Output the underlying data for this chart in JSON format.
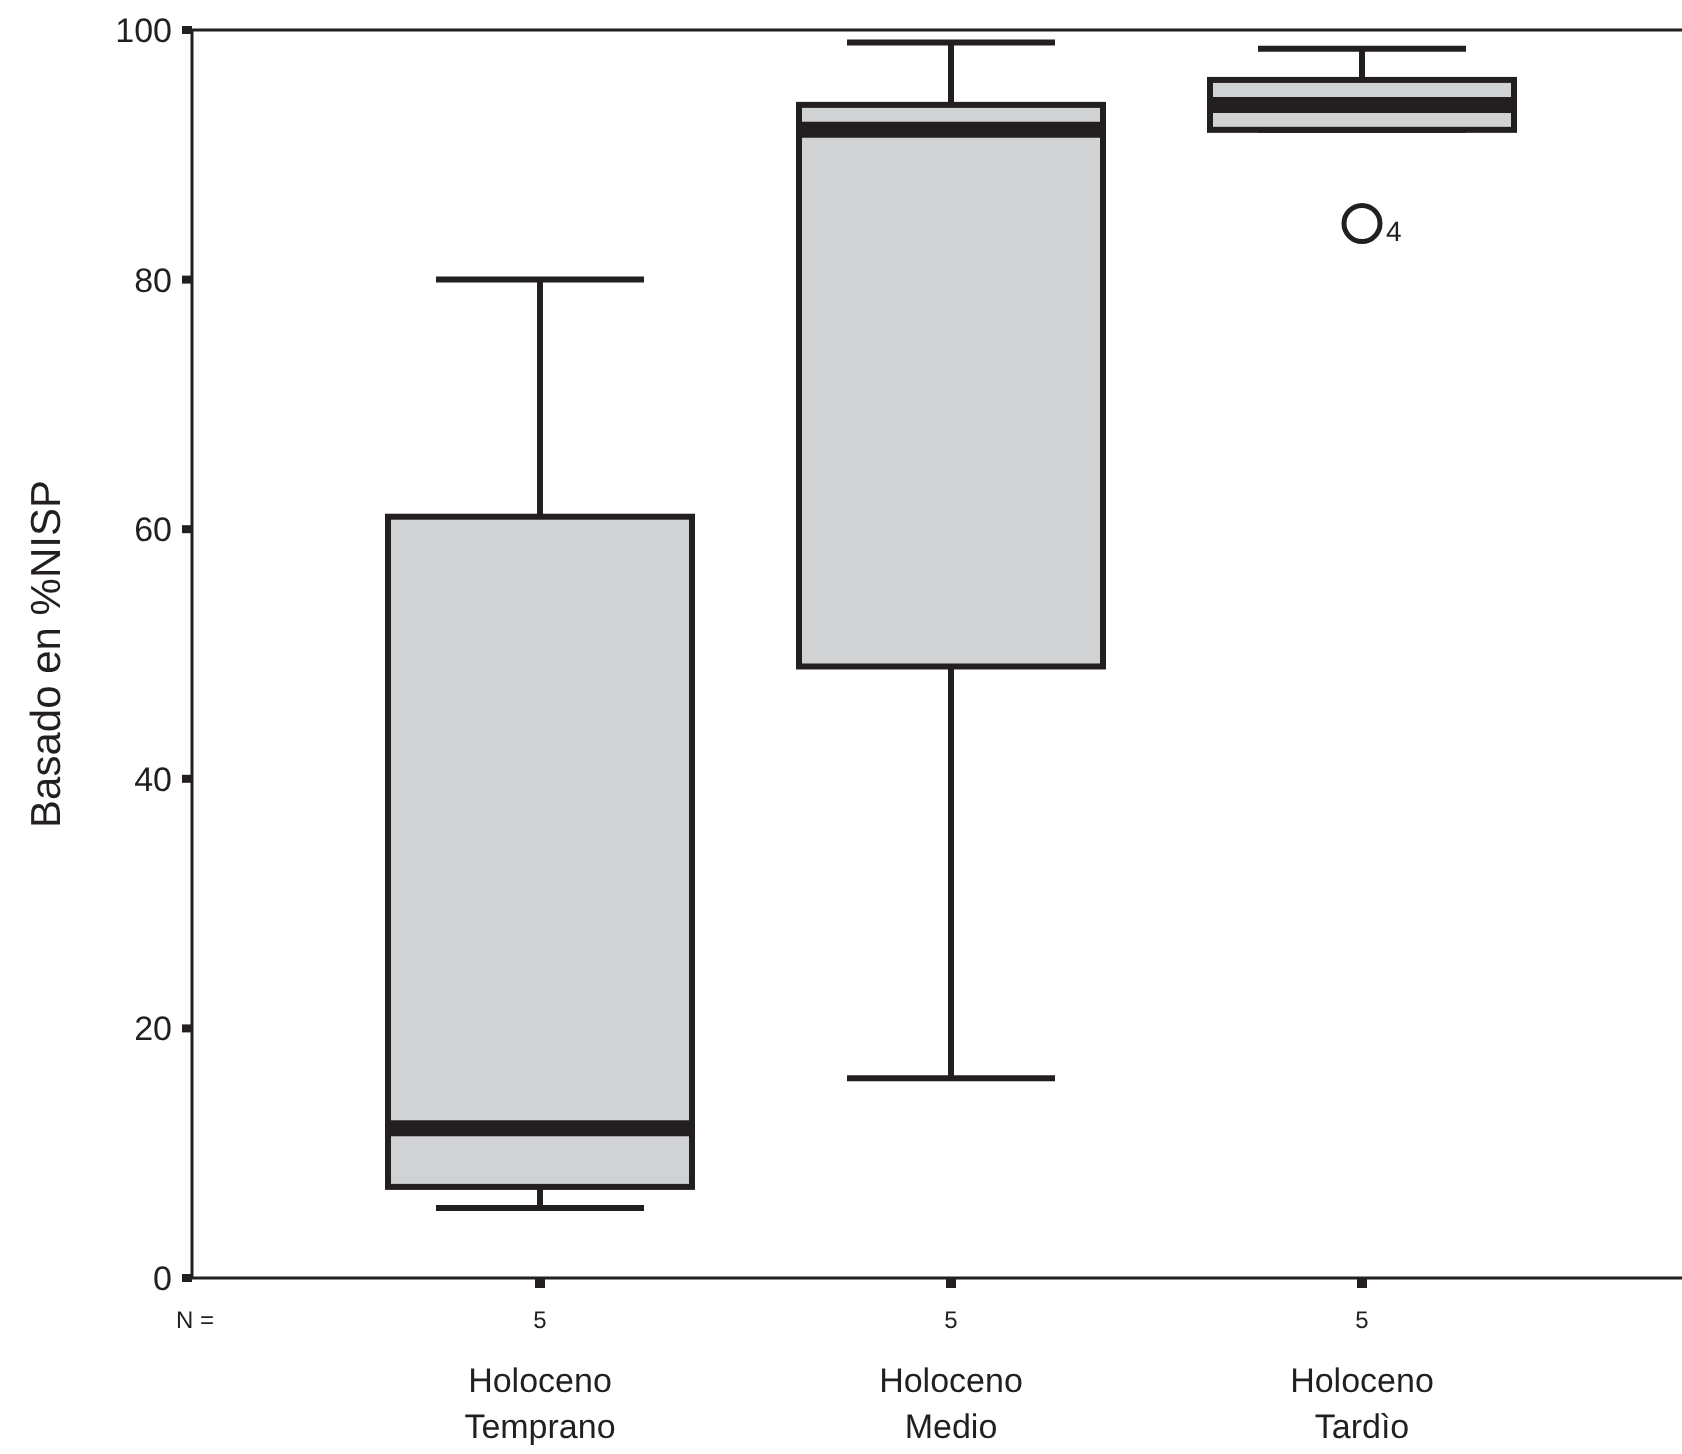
{
  "chart_data": {
    "type": "box",
    "ylabel": "Basado en %NISP",
    "categories": [
      "Holoceno Temprano",
      "Holoceno Medio",
      "Holoceno Tardìo"
    ],
    "series": [
      {
        "color": "#d1d2d4",
        "boxes": [
          {
            "low": 5.6,
            "q1": 7.3,
            "median": 12,
            "q3": 61,
            "high": 80
          },
          {
            "low": 16,
            "q1": 49,
            "median": 92,
            "q3": 94,
            "high": 99
          },
          {
            "low": 92,
            "q1": 92,
            "median": 94,
            "q3": 96,
            "high": 98.5,
            "outliers": [
              84.5
            ]
          }
        ]
      }
    ],
    "ylim": [
      0,
      100
    ],
    "yticks": [
      0,
      20,
      40,
      60,
      80,
      100
    ],
    "grid": false,
    "annotations": [
      "N =",
      "5",
      "5",
      "5",
      "4"
    ]
  }
}
